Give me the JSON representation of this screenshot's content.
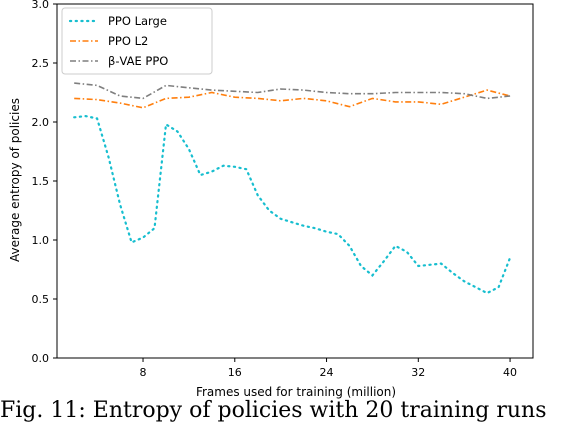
{
  "chart_data": {
    "type": "line",
    "title": "",
    "xlabel": "Frames used for training (million)",
    "ylabel": "Average entropy of policies",
    "xlim": [
      0.5,
      42
    ],
    "ylim": [
      0.0,
      3.0
    ],
    "xticks": [
      8,
      16,
      24,
      32,
      40
    ],
    "yticks": [
      0.0,
      0.5,
      1.0,
      1.5,
      2.0,
      2.5,
      3.0
    ],
    "ytick_labels": [
      "0.0",
      "0.5",
      "1.0",
      "1.5",
      "2.0",
      "2.5",
      "3.0"
    ],
    "grid": false,
    "legend_position": "top-left",
    "series": [
      {
        "name": "PPO Large",
        "color": "#17becf",
        "style": "dotted",
        "x": [
          2,
          3,
          4,
          5,
          6,
          7,
          8,
          9,
          10,
          11,
          12,
          13,
          14,
          15,
          16,
          17,
          18,
          19,
          20,
          21,
          22,
          23,
          24,
          25,
          26,
          27,
          28,
          29,
          30,
          31,
          32,
          33,
          34,
          35,
          36,
          37,
          38,
          39,
          40
        ],
        "y": [
          2.04,
          2.05,
          2.03,
          1.7,
          1.3,
          0.98,
          1.02,
          1.1,
          1.98,
          1.92,
          1.77,
          1.55,
          1.58,
          1.63,
          1.62,
          1.6,
          1.38,
          1.25,
          1.18,
          1.15,
          1.12,
          1.1,
          1.07,
          1.05,
          0.95,
          0.78,
          0.7,
          0.82,
          0.95,
          0.9,
          0.78,
          0.79,
          0.8,
          0.72,
          0.65,
          0.6,
          0.55,
          0.6,
          0.85
        ]
      },
      {
        "name": "PPO L2",
        "color": "#ff7f0e",
        "style": "dashdot",
        "x": [
          2,
          4,
          6,
          8,
          10,
          12,
          14,
          16,
          18,
          20,
          22,
          24,
          26,
          28,
          30,
          32,
          34,
          36,
          38,
          40
        ],
        "y": [
          2.2,
          2.19,
          2.16,
          2.12,
          2.2,
          2.21,
          2.25,
          2.21,
          2.2,
          2.18,
          2.2,
          2.18,
          2.13,
          2.2,
          2.17,
          2.17,
          2.15,
          2.21,
          2.27,
          2.22
        ]
      },
      {
        "name": "β-VAE PPO",
        "color": "#7f7f7f",
        "style": "dashdot",
        "x": [
          2,
          4,
          6,
          8,
          10,
          12,
          14,
          16,
          18,
          20,
          22,
          24,
          26,
          28,
          30,
          32,
          34,
          36,
          38,
          40
        ],
        "y": [
          2.33,
          2.31,
          2.22,
          2.2,
          2.31,
          2.29,
          2.27,
          2.26,
          2.25,
          2.28,
          2.27,
          2.25,
          2.24,
          2.24,
          2.25,
          2.25,
          2.25,
          2.24,
          2.2,
          2.22
        ]
      }
    ]
  },
  "caption": "Fig. 11: Entropy of policies with 20 training runs"
}
